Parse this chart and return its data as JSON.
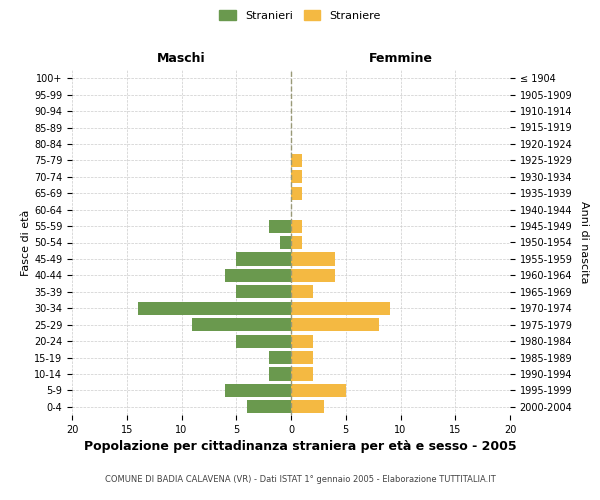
{
  "age_groups": [
    "100+",
    "95-99",
    "90-94",
    "85-89",
    "80-84",
    "75-79",
    "70-74",
    "65-69",
    "60-64",
    "55-59",
    "50-54",
    "45-49",
    "40-44",
    "35-39",
    "30-34",
    "25-29",
    "20-24",
    "15-19",
    "10-14",
    "5-9",
    "0-4"
  ],
  "birth_years": [
    "≤ 1904",
    "1905-1909",
    "1910-1914",
    "1915-1919",
    "1920-1924",
    "1925-1929",
    "1930-1934",
    "1935-1939",
    "1940-1944",
    "1945-1949",
    "1950-1954",
    "1955-1959",
    "1960-1964",
    "1965-1969",
    "1970-1974",
    "1975-1979",
    "1980-1984",
    "1985-1989",
    "1990-1994",
    "1995-1999",
    "2000-2004"
  ],
  "maschi": [
    0,
    0,
    0,
    0,
    0,
    0,
    0,
    0,
    0,
    2,
    1,
    5,
    6,
    5,
    14,
    9,
    5,
    2,
    2,
    6,
    4
  ],
  "femmine": [
    0,
    0,
    0,
    0,
    0,
    1,
    1,
    1,
    0,
    1,
    1,
    4,
    4,
    2,
    9,
    8,
    2,
    2,
    2,
    5,
    3
  ],
  "maschi_color": "#6a994e",
  "femmine_color": "#f4b942",
  "background_color": "#ffffff",
  "grid_color": "#cccccc",
  "xlim": 20,
  "bar_height": 0.8,
  "title": "Popolazione per cittadinanza straniera per età e sesso - 2005",
  "subtitle": "COMUNE DI BADIA CALAVENA (VR) - Dati ISTAT 1° gennaio 2005 - Elaborazione TUTTITALIA.IT",
  "ylabel_left": "Fasce di età",
  "ylabel_right": "Anni di nascita",
  "xlabel_left": "Maschi",
  "xlabel_right": "Femmine",
  "legend_maschi": "Stranieri",
  "legend_femmine": "Straniere",
  "centerline_color": "#999977"
}
